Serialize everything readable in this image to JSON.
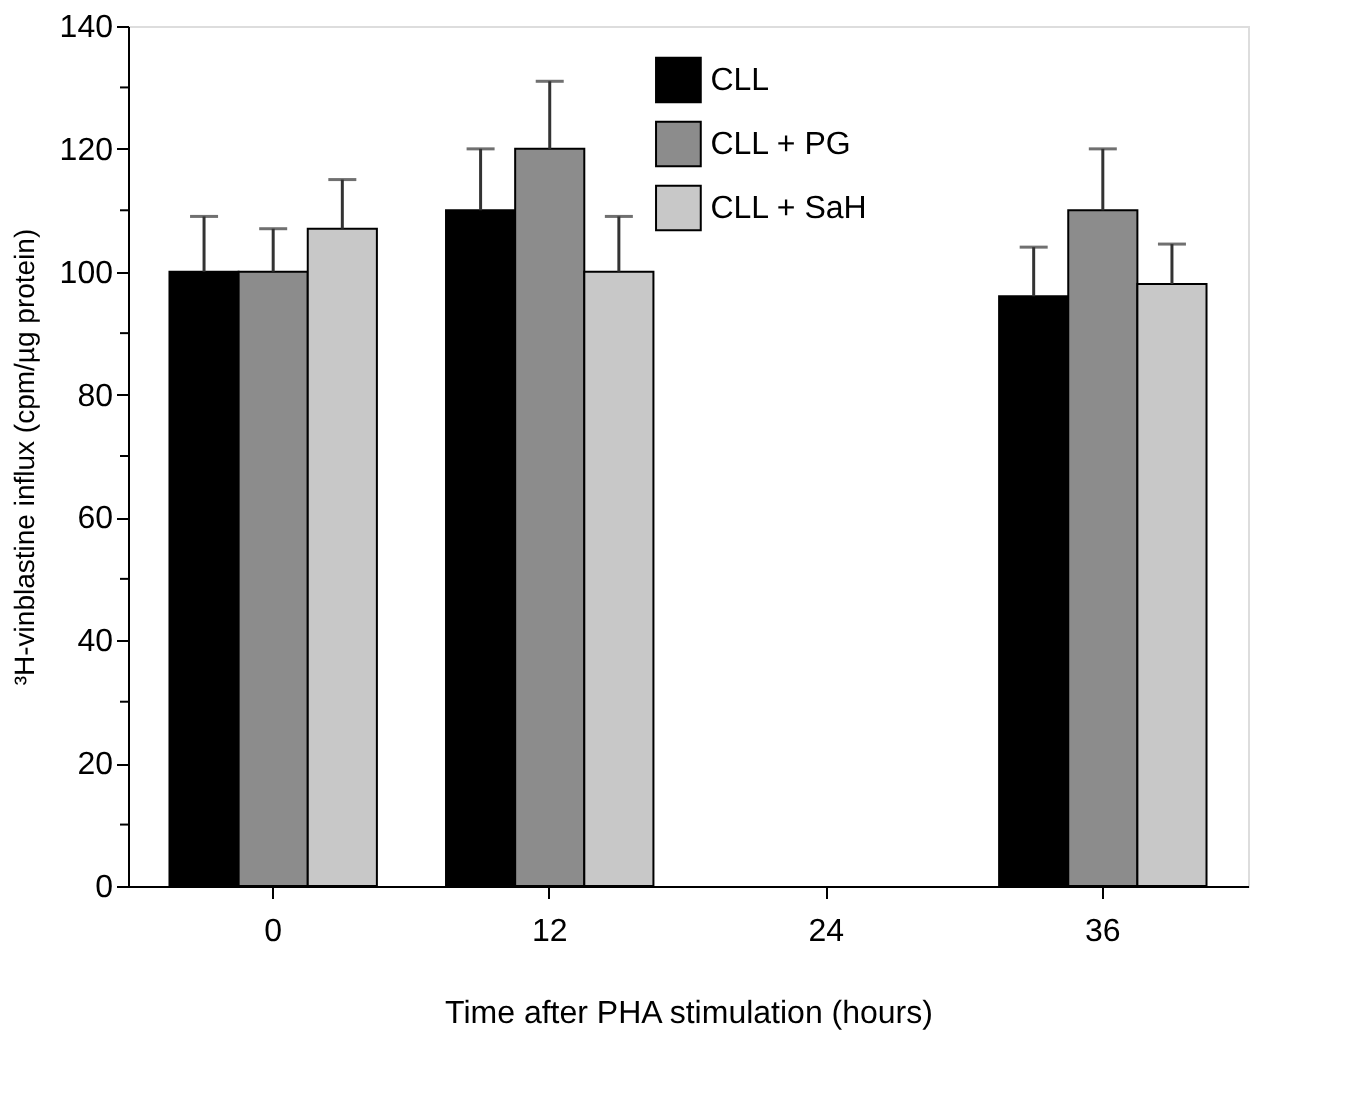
{
  "chart_data": {
    "type": "bar",
    "xlabel": "Time after PHA stimulation (hours)",
    "ylabel": "³H-vinblastine influx (cpm/µg protein)",
    "categories": [
      "0",
      "12",
      "24",
      "36"
    ],
    "series": [
      {
        "name": "CLL",
        "color": "#000000",
        "values": [
          100,
          110,
          null,
          96
        ],
        "errors": [
          [
            100,
            109
          ],
          [
            110,
            120
          ],
          null,
          [
            96,
            104
          ]
        ]
      },
      {
        "name": "CLL + PG",
        "color": "#8c8c8c",
        "values": [
          100,
          120,
          null,
          110
        ],
        "errors": [
          [
            100,
            107
          ],
          [
            120,
            131
          ],
          null,
          [
            110,
            120
          ]
        ]
      },
      {
        "name": "CLL + SaH",
        "color": "#c8c8c8",
        "values": [
          107,
          100,
          null,
          98
        ],
        "errors": [
          [
            107,
            115
          ],
          [
            100,
            109
          ],
          null,
          [
            98,
            104.5
          ]
        ]
      }
    ],
    "ylim": [
      0,
      140
    ],
    "yticks": [
      0,
      {
        "value": 10,
        "label": null
      },
      20,
      {
        "value": 30,
        "label": null
      },
      40,
      {
        "value": 50,
        "label": null
      },
      60,
      {
        "value": 70,
        "label": null
      },
      80,
      {
        "value": 90,
        "label": null
      },
      100,
      {
        "value": 110,
        "label": null
      },
      120,
      {
        "value": 130,
        "label": null
      },
      140
    ],
    "grid": false,
    "legend": "top right"
  }
}
